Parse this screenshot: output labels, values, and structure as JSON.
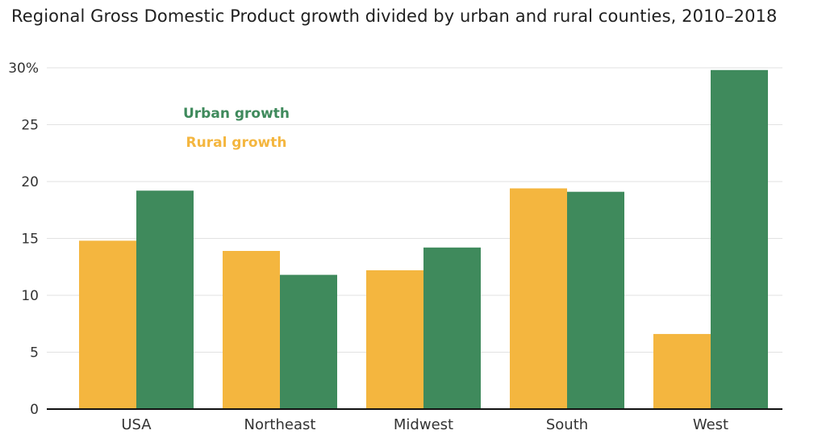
{
  "chart_data": {
    "type": "bar",
    "title": "Regional Gross Domestic Product growth divided by urban and rural counties, 2010–2018",
    "categories": [
      "USA",
      "Northeast",
      "Midwest",
      "South",
      "West"
    ],
    "series": [
      {
        "name": "Rural growth",
        "color": "#f4b63f",
        "values": [
          14.8,
          13.9,
          12.2,
          19.4,
          6.6
        ]
      },
      {
        "name": "Urban growth",
        "color": "#3f8a5c",
        "values": [
          19.2,
          11.8,
          14.2,
          19.1,
          29.8
        ]
      }
    ],
    "ylim": [
      0,
      30
    ],
    "yticks": [
      0,
      5,
      10,
      15,
      20,
      25,
      30
    ],
    "ytick_labels": [
      "0",
      "5",
      "10",
      "15",
      "20",
      "25",
      "30%"
    ],
    "xlabel": "",
    "ylabel": "",
    "legend": {
      "position": "top-left",
      "order": [
        "Urban growth",
        "Rural growth"
      ]
    }
  }
}
